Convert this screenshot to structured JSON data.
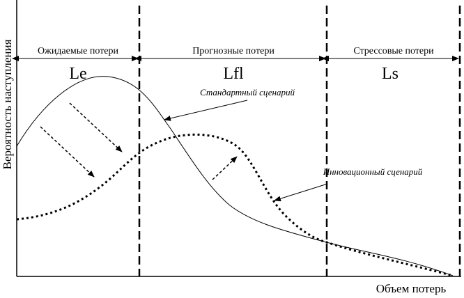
{
  "axes": {
    "y_label": "Вероятность наступления",
    "x_label": "Объем потерь"
  },
  "regions": [
    {
      "header": "Ожидаемые потери",
      "label": "Le"
    },
    {
      "header": "Прогнозные потери",
      "label": "Lfl"
    },
    {
      "header": "Стрессовые потери",
      "label": "Ls"
    }
  ],
  "curves": [
    {
      "label": "Стандартный сценарий"
    },
    {
      "label": "Инновационный сценарий"
    }
  ]
}
